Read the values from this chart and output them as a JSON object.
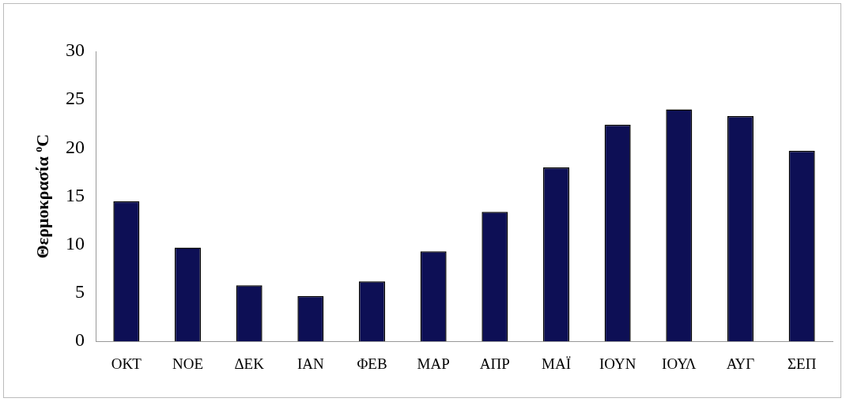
{
  "chart_data": {
    "type": "bar",
    "ylabel": "Θερμοκρασία $^{o}$C",
    "categories": [
      "ΟΚΤ",
      "ΝΟΕ",
      "ΔΕΚ",
      "ΙΑΝ",
      "ΦΕΒ",
      "ΜΑΡ",
      "ΑΠΡ",
      "ΜΑΪ",
      "ΙΟΥΝ",
      "ΙΟΥΛ",
      "ΑΥΓ",
      "ΣΕΠ"
    ],
    "values": [
      14.5,
      9.7,
      5.8,
      4.7,
      6.2,
      9.3,
      13.4,
      18,
      22.4,
      24,
      23.3,
      19.7
    ],
    "color": "#0d0f55",
    "ylim": [
      0,
      30
    ],
    "yticks": [
      0,
      5,
      10,
      15,
      20,
      25,
      30
    ],
    "grid": false,
    "legend": false
  }
}
